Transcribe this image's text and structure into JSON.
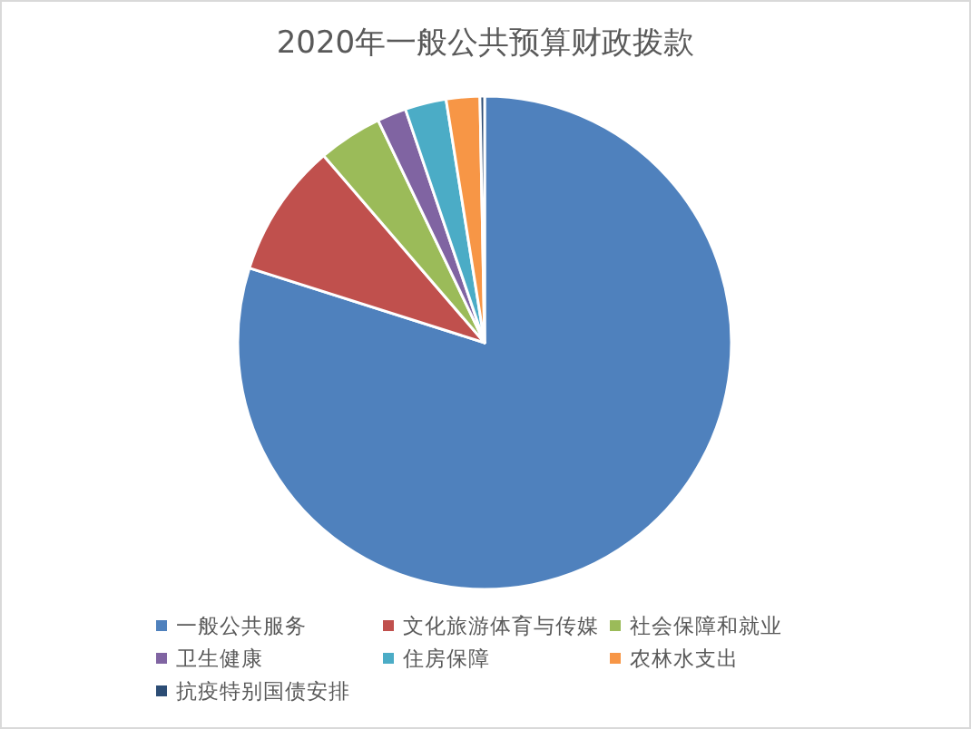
{
  "chart_data": {
    "type": "pie",
    "title": "2020年一般公共预算财政拨款",
    "categories": [
      "一般公共服务",
      "文化旅游体育与传媒",
      "社会保障和就业",
      "卫生健康",
      "住房保障",
      "农林水支出",
      "抗疫特别国债安排"
    ],
    "values": [
      79.9,
      8.8,
      4.2,
      1.9,
      2.7,
      2.2,
      0.3
    ],
    "colors": [
      "#4f81bd",
      "#c0504d",
      "#9bbb59",
      "#8064a2",
      "#4bacc6",
      "#f79646",
      "#2c4d75"
    ],
    "legend": "bottom"
  }
}
